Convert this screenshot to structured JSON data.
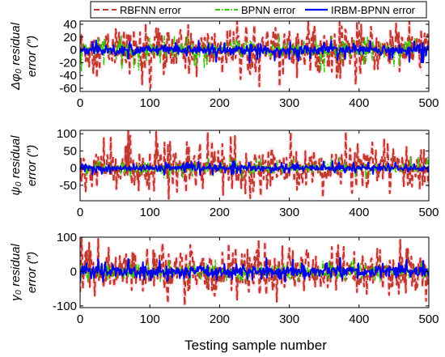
{
  "chart_data": {
    "type": "line",
    "legend": {
      "placement": "top",
      "entries": [
        {
          "label": "RBFNN error",
          "color": "#c0392b",
          "style": "dashed"
        },
        {
          "label": "BPNN error",
          "color": "#33cc00",
          "style": "dashdot"
        },
        {
          "label": "IRBM-BPNN error",
          "color": "#0000ee",
          "style": "solid"
        }
      ]
    },
    "xlabel": "Testing sample number",
    "xlim": [
      0,
      500
    ],
    "xticks": [
      0,
      100,
      200,
      300,
      400,
      500
    ],
    "grid": false,
    "samples": 500,
    "subplots": [
      {
        "ylabel_line1": "Δφ₀ residual",
        "ylabel_line2": "error (″)",
        "ylim": [
          -65,
          45
        ],
        "yticks": [
          -60,
          -40,
          -20,
          0,
          20,
          40
        ],
        "series": [
          {
            "name": "RBFNN error",
            "amplitude_range": [
              -60,
              45
            ],
            "typical_abs": 22
          },
          {
            "name": "BPNN error",
            "amplitude_range": [
              -35,
              25
            ],
            "typical_abs": 8
          },
          {
            "name": "IRBM-BPNN error",
            "amplitude_range": [
              -20,
              15
            ],
            "typical_abs": 5
          }
        ]
      },
      {
        "ylabel_line1": "ψ₀ residual",
        "ylabel_line2": "error (″)",
        "ylim": [
          -95,
          110
        ],
        "yticks": [
          -50,
          0,
          50,
          100
        ],
        "series": [
          {
            "name": "RBFNN error",
            "amplitude_range": [
              -90,
              110
            ],
            "typical_abs": 35
          },
          {
            "name": "BPNN error",
            "amplitude_range": [
              -30,
              35
            ],
            "typical_abs": 10
          },
          {
            "name": "IRBM-BPNN error",
            "amplitude_range": [
              -20,
              20
            ],
            "typical_abs": 6
          }
        ]
      },
      {
        "ylabel_line1": "γ₀ residual",
        "ylabel_line2": "error (″)",
        "ylim": [
          -105,
          100
        ],
        "yticks": [
          -100,
          0,
          100
        ],
        "series": [
          {
            "name": "RBFNN error",
            "amplitude_range": [
              -100,
              100
            ],
            "typical_abs": 40
          },
          {
            "name": "BPNN error",
            "amplitude_range": [
              -30,
              35
            ],
            "typical_abs": 12
          },
          {
            "name": "IRBM-BPNN error",
            "amplitude_range": [
              -30,
              40
            ],
            "typical_abs": 12
          }
        ]
      }
    ]
  }
}
